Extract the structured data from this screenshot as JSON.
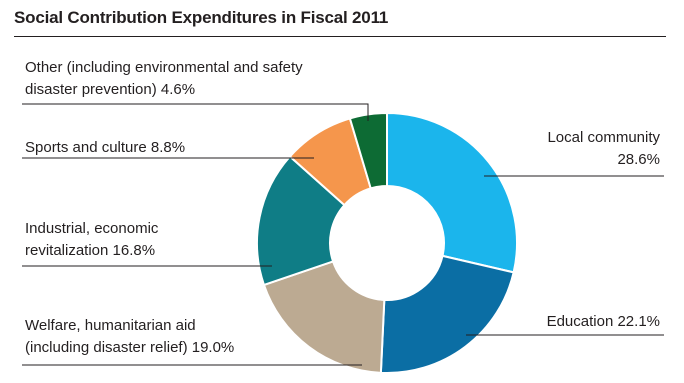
{
  "chart_data": {
    "type": "pie",
    "title": "Social Contribution Expenditures in Fiscal 2011",
    "unit": "%",
    "slices": [
      {
        "name": "Local community",
        "value": 28.6,
        "color": "#1bb5ec",
        "label": [
          "Local community",
          "28.6%"
        ]
      },
      {
        "name": "Education",
        "value": 22.1,
        "color": "#0b6ea4",
        "label": [
          "Education 22.1%"
        ]
      },
      {
        "name": "Welfare, humanitarian aid (including disaster relief)",
        "value": 19.0,
        "color": "#bcaa92",
        "label": [
          "Welfare, humanitarian aid",
          "(including disaster relief) 19.0%"
        ]
      },
      {
        "name": "Industrial, economic revitalization",
        "value": 16.8,
        "color": "#0f7d86",
        "label": [
          "Industrial, economic",
          "revitalization 16.8%"
        ]
      },
      {
        "name": "Sports and culture",
        "value": 8.8,
        "color": "#f5964c",
        "label": [
          "Sports and culture 8.8%"
        ]
      },
      {
        "name": "Other (including environmental and safety disaster prevention)",
        "value": 4.6,
        "color": "#0d6b34",
        "label": [
          "Other (including environmental and safety",
          "disaster prevention) 4.6%"
        ]
      }
    ]
  }
}
